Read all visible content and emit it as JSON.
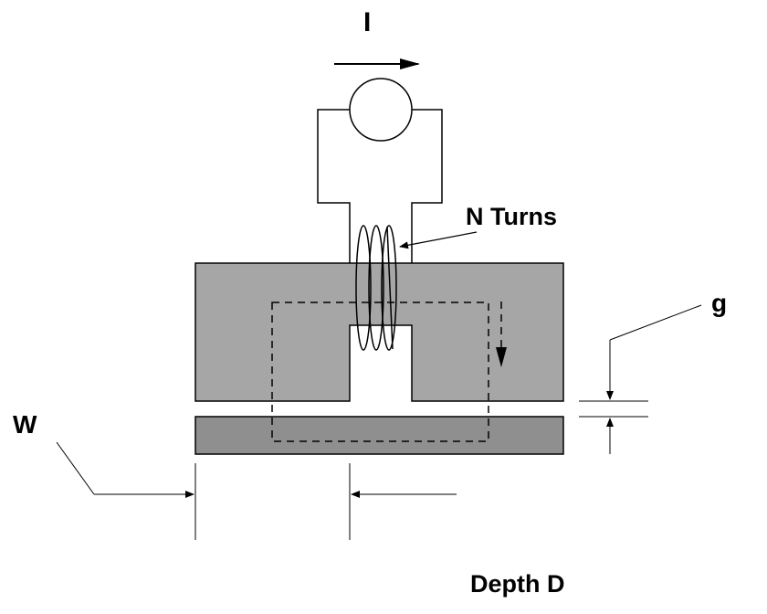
{
  "labels": {
    "current": "I",
    "turns": "N Turns",
    "gap": "g",
    "width": "W",
    "depth": "Depth D"
  },
  "colors": {
    "core": "#a6a6a6",
    "armature": "#8f8f8f",
    "line": "#000000",
    "background": "#ffffff"
  },
  "icons": {
    "source": "current-source-circle-icon"
  }
}
